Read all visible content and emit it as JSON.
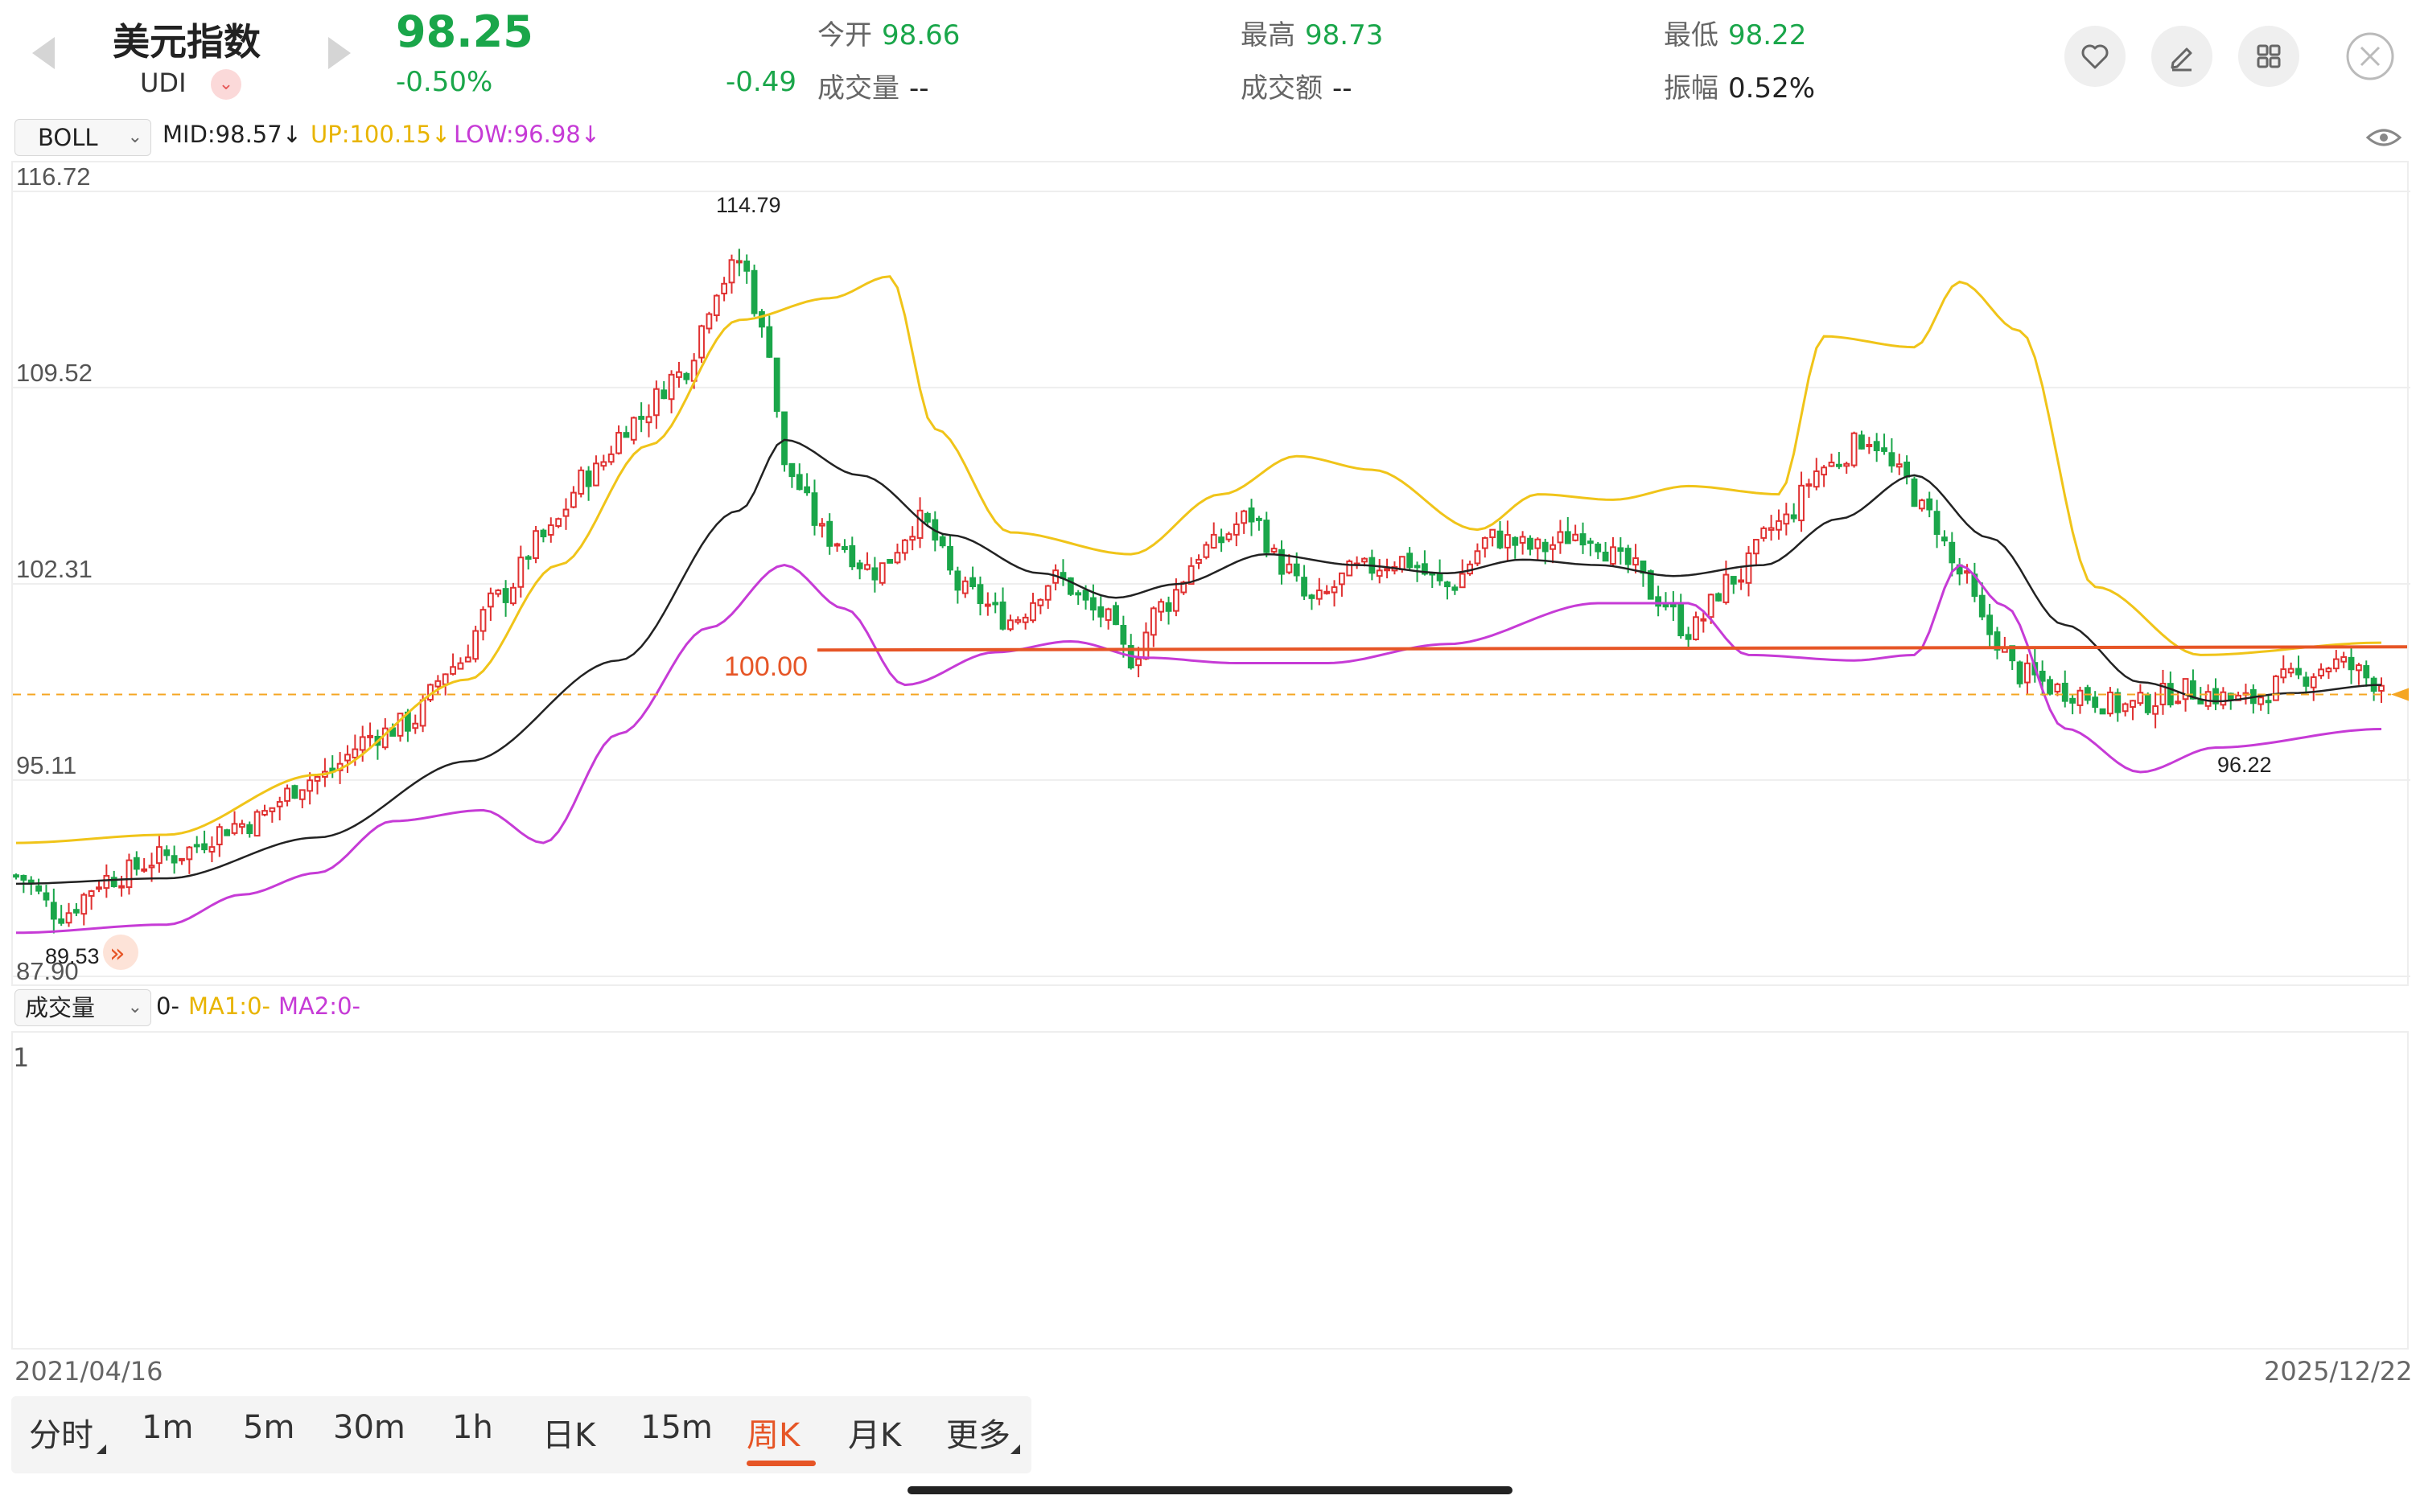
{
  "header": {
    "title": "美元指数",
    "code": "UDI",
    "price": "98.25",
    "change_pct": "-0.50%",
    "change_abs": "-0.49",
    "stats": [
      {
        "label": "今开",
        "value": "98.66"
      },
      {
        "label": "成交量",
        "value": "--"
      },
      {
        "label": "最高",
        "value": "98.73"
      },
      {
        "label": "成交额",
        "value": "--"
      },
      {
        "label": "最低",
        "value": "98.22"
      },
      {
        "label": "振幅",
        "value": "0.52%"
      }
    ],
    "icons": [
      "heart-icon",
      "edit-icon",
      "grid-icon",
      "close-icon"
    ]
  },
  "indicator": {
    "selector": "BOLL",
    "mid": "MID:98.57↓",
    "up": "UP:100.15↓",
    "low": "LOW:96.98↓"
  },
  "volume": {
    "selector": "成交量",
    "value": "0-",
    "ma1": "MA1:0-",
    "ma2": "MA2:0-",
    "axis_max": "1"
  },
  "chart": {
    "y_ticks": [
      "116.72",
      "109.52",
      "102.31",
      "95.11",
      "87.90"
    ],
    "high_label": "114.79",
    "low_label": "89.53",
    "recent_low_label": "96.22",
    "level_label": "100.00",
    "start_date": "2021/04/16",
    "end_date": "2025/12/22"
  },
  "tabs": [
    "分时",
    "1m",
    "5m",
    "30m",
    "1h",
    "日K",
    "15m",
    "周K",
    "月K",
    "更多"
  ],
  "active_tab": "周K",
  "colors": {
    "up": "#e03131",
    "down": "#1aa64a",
    "mid": "#222222",
    "upper": "#f0c419",
    "lower": "#c63bd6",
    "level": "#e65526",
    "price_line": "#f5a623"
  },
  "chart_data": {
    "type": "candlestick",
    "title": "",
    "xlabel": "",
    "ylabel": "",
    "ylim": [
      87.9,
      116.72
    ],
    "x_range": [
      "2021/04/16",
      "2025/12/22"
    ],
    "indicators": [
      "MID",
      "UP",
      "LOW"
    ],
    "annotations": [
      {
        "text": "114.79",
        "value": 114.79
      },
      {
        "text": "89.53",
        "value": 89.53
      },
      {
        "text": "96.22",
        "value": 96.22
      },
      {
        "text": "100.00",
        "value": 100.0
      }
    ],
    "anchors": [
      [
        0,
        91.6
      ],
      [
        6,
        90.2
      ],
      [
        12,
        91.5
      ],
      [
        20,
        92.3
      ],
      [
        30,
        93.5
      ],
      [
        40,
        95.2
      ],
      [
        48,
        96.8
      ],
      [
        52,
        97.2
      ],
      [
        58,
        99.3
      ],
      [
        64,
        101.8
      ],
      [
        70,
        104.0
      ],
      [
        76,
        106.3
      ],
      [
        82,
        108.3
      ],
      [
        88,
        110.0
      ],
      [
        94,
        113.5
      ],
      [
        96,
        114.2
      ],
      [
        100,
        111.0
      ],
      [
        102,
        106.5
      ],
      [
        108,
        104.0
      ],
      [
        114,
        102.8
      ],
      [
        120,
        104.6
      ],
      [
        126,
        102.0
      ],
      [
        132,
        101.0
      ],
      [
        138,
        102.5
      ],
      [
        144,
        101.2
      ],
      [
        148,
        99.6
      ],
      [
        152,
        101.5
      ],
      [
        158,
        103.6
      ],
      [
        164,
        104.8
      ],
      [
        168,
        103.0
      ],
      [
        172,
        101.6
      ],
      [
        178,
        102.8
      ],
      [
        184,
        103.2
      ],
      [
        190,
        102.2
      ],
      [
        196,
        104.0
      ],
      [
        202,
        103.6
      ],
      [
        208,
        104.2
      ],
      [
        214,
        103.0
      ],
      [
        218,
        101.8
      ],
      [
        222,
        100.6
      ],
      [
        228,
        102.5
      ],
      [
        234,
        104.5
      ],
      [
        240,
        106.6
      ],
      [
        246,
        107.7
      ],
      [
        250,
        106.3
      ],
      [
        254,
        104.8
      ],
      [
        258,
        102.7
      ],
      [
        262,
        100.5
      ],
      [
        266,
        99.0
      ],
      [
        272,
        98.4
      ],
      [
        280,
        97.8
      ],
      [
        288,
        98.4
      ],
      [
        296,
        98.0
      ],
      [
        302,
        98.8
      ],
      [
        308,
        99.4
      ],
      [
        314,
        98.7
      ]
    ],
    "mid_anchors": [
      [
        0,
        91.3
      ],
      [
        20,
        91.5
      ],
      [
        40,
        93.0
      ],
      [
        60,
        95.8
      ],
      [
        80,
        99.5
      ],
      [
        96,
        105.0
      ],
      [
        102,
        107.6
      ],
      [
        112,
        106.3
      ],
      [
        124,
        104.1
      ],
      [
        136,
        102.7
      ],
      [
        146,
        101.8
      ],
      [
        154,
        102.3
      ],
      [
        166,
        103.4
      ],
      [
        178,
        103.0
      ],
      [
        190,
        102.7
      ],
      [
        200,
        103.2
      ],
      [
        210,
        103.0
      ],
      [
        220,
        102.6
      ],
      [
        232,
        103.0
      ],
      [
        242,
        104.7
      ],
      [
        252,
        106.3
      ],
      [
        262,
        104.0
      ],
      [
        272,
        100.8
      ],
      [
        282,
        98.7
      ],
      [
        292,
        98.0
      ],
      [
        302,
        98.3
      ],
      [
        314,
        98.6
      ]
    ],
    "up_anchors": [
      [
        0,
        92.8
      ],
      [
        20,
        93.1
      ],
      [
        40,
        95.3
      ],
      [
        60,
        98.8
      ],
      [
        72,
        103.0
      ],
      [
        84,
        107.4
      ],
      [
        96,
        112.0
      ],
      [
        108,
        112.8
      ],
      [
        116,
        113.6
      ],
      [
        122,
        108.0
      ],
      [
        132,
        104.2
      ],
      [
        148,
        103.4
      ],
      [
        160,
        105.6
      ],
      [
        170,
        107.0
      ],
      [
        180,
        106.5
      ],
      [
        194,
        104.3
      ],
      [
        202,
        105.6
      ],
      [
        212,
        105.4
      ],
      [
        222,
        105.9
      ],
      [
        234,
        105.6
      ],
      [
        240,
        111.4
      ],
      [
        252,
        111.0
      ],
      [
        258,
        113.4
      ],
      [
        266,
        111.6
      ],
      [
        276,
        102.2
      ],
      [
        290,
        99.7
      ],
      [
        314,
        100.15
      ]
    ],
    "low_anchors": [
      [
        0,
        89.5
      ],
      [
        20,
        89.8
      ],
      [
        30,
        90.9
      ],
      [
        40,
        91.7
      ],
      [
        50,
        93.6
      ],
      [
        62,
        94.0
      ],
      [
        70,
        92.8
      ],
      [
        80,
        96.8
      ],
      [
        92,
        100.7
      ],
      [
        102,
        103.0
      ],
      [
        110,
        101.4
      ],
      [
        118,
        98.6
      ],
      [
        130,
        99.8
      ],
      [
        140,
        100.2
      ],
      [
        150,
        99.6
      ],
      [
        162,
        99.4
      ],
      [
        174,
        99.4
      ],
      [
        190,
        100.1
      ],
      [
        210,
        101.6
      ],
      [
        222,
        101.6
      ],
      [
        230,
        99.7
      ],
      [
        244,
        99.5
      ],
      [
        252,
        99.7
      ],
      [
        258,
        103.0
      ],
      [
        264,
        101.5
      ],
      [
        272,
        97.0
      ],
      [
        282,
        95.4
      ],
      [
        292,
        96.3
      ],
      [
        314,
        96.98
      ]
    ],
    "level_y": 100.0,
    "last_price": 98.25
  }
}
